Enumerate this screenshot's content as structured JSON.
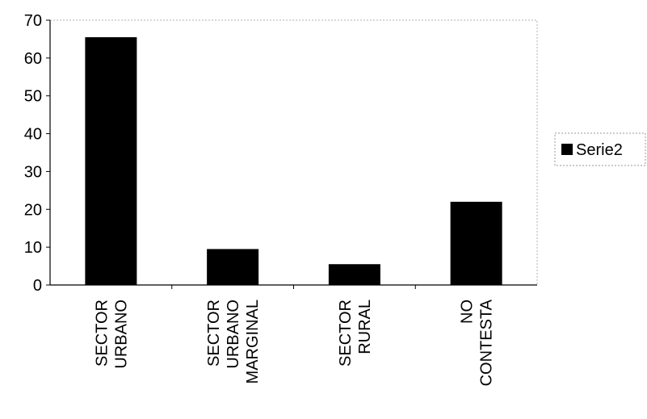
{
  "chart_data": {
    "type": "bar",
    "categories": [
      [
        "SECTOR",
        "URBANO"
      ],
      [
        "SECTOR",
        "URBANO",
        "MARGINAL"
      ],
      [
        "SECTOR",
        "RURAL"
      ],
      [
        "NO",
        "CONTESTA"
      ]
    ],
    "series": [
      {
        "name": "Serie2",
        "values": [
          65.5,
          9.5,
          5.5,
          22
        ]
      }
    ],
    "ylim": [
      0,
      70
    ],
    "yticks": [
      0,
      10,
      20,
      30,
      40,
      50,
      60,
      70
    ],
    "legend_position": "right",
    "grid": false,
    "bar_color": "#000000",
    "axis_color": "#000000"
  }
}
